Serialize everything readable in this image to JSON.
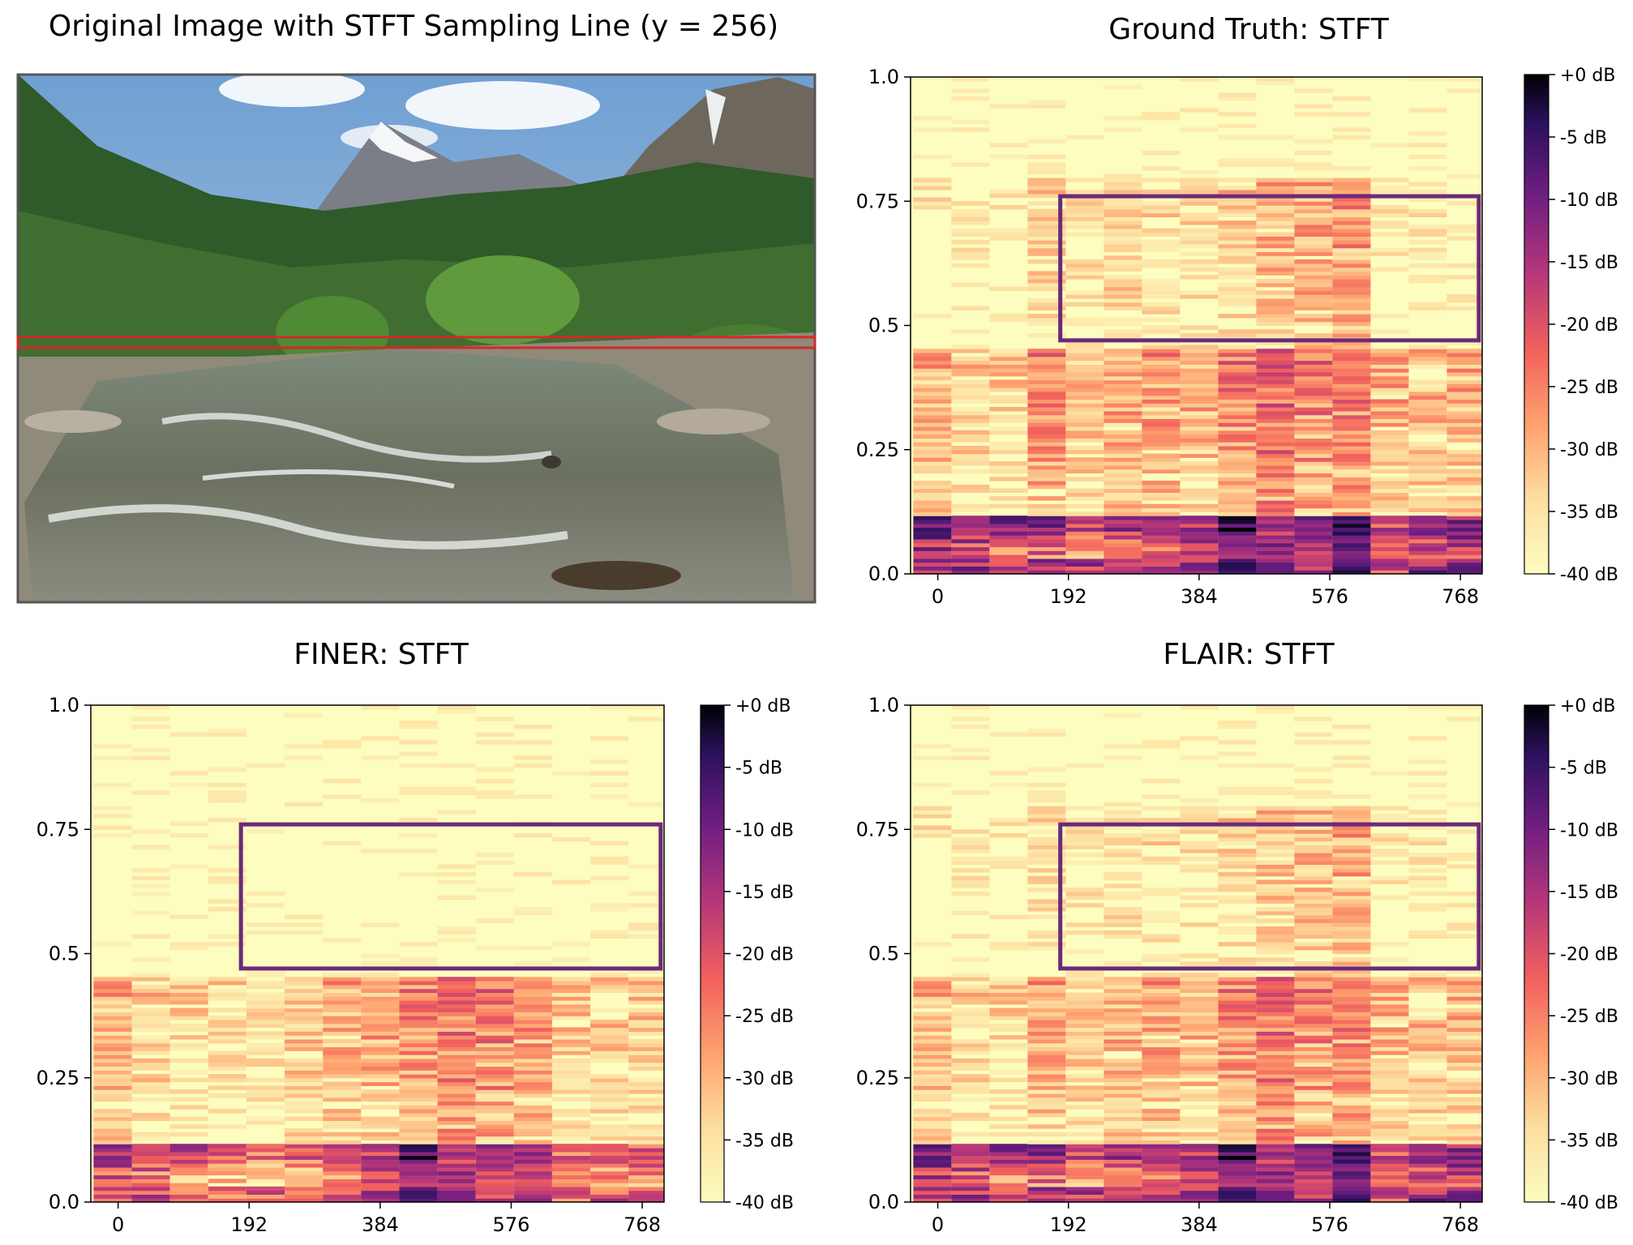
{
  "chart_data": [
    {
      "id": "original",
      "type": "image",
      "title": "Original Image with STFT Sampling Line (y = 256)",
      "image_name": "river-valley-landscape-photo",
      "sampling_line_color": "#d62728"
    },
    {
      "id": "gt",
      "type": "heatmap",
      "title": "Ground Truth: STFT",
      "xticks": [
        "0",
        "192",
        "384",
        "576",
        "768"
      ],
      "yticks": [
        "0.0",
        "0.25",
        "0.5",
        "0.75",
        "1.0"
      ],
      "xlim": [
        -40,
        800
      ],
      "ylim": [
        0.0,
        1.0
      ],
      "colormap": "magma",
      "colorbar": {
        "ticks": [
          "+0 dB",
          "-5 dB",
          "-10 dB",
          "-15 dB",
          "-20 dB",
          "-25 dB",
          "-30 dB",
          "-35 dB",
          "-40 dB"
        ],
        "range_db": [
          -40,
          0
        ]
      },
      "highlight_box": {
        "x": [
          180,
          800
        ],
        "y": [
          0.47,
          0.76
        ],
        "color": "#6b2a7a"
      },
      "profile": {
        "low_energy": [
          -16,
          -20,
          -22,
          -21,
          -24,
          -22,
          -23,
          -20,
          -12,
          -17,
          -19,
          -14,
          -24,
          -20,
          -19
        ],
        "mid_energy": [
          -33,
          -36,
          -37,
          -30,
          -34,
          -32,
          -31,
          -33,
          -29,
          -25,
          -28,
          -27,
          -33,
          -34,
          -33
        ],
        "high_band_energy": [
          -40,
          -40,
          -40,
          -36,
          -37,
          -35,
          -36,
          -36,
          -35,
          -32,
          -30,
          -29,
          -40,
          -40,
          -40
        ],
        "has_high_band": true
      }
    },
    {
      "id": "finer",
      "type": "heatmap",
      "title": "FINER: STFT",
      "xticks": [
        "0",
        "192",
        "384",
        "576",
        "768"
      ],
      "yticks": [
        "0.0",
        "0.25",
        "0.5",
        "0.75",
        "1.0"
      ],
      "xlim": [
        -40,
        800
      ],
      "ylim": [
        0.0,
        1.0
      ],
      "colormap": "magma",
      "colorbar": {
        "ticks": [
          "+0 dB",
          "-5 dB",
          "-10 dB",
          "-15 dB",
          "-20 dB",
          "-25 dB",
          "-30 dB",
          "-35 dB",
          "-40 dB"
        ],
        "range_db": [
          -40,
          0
        ]
      },
      "highlight_box": {
        "x": [
          180,
          800
        ],
        "y": [
          0.47,
          0.76
        ],
        "color": "#6b2a7a"
      },
      "profile": {
        "low_energy": [
          -22,
          -25,
          -28,
          -31,
          -30,
          -29,
          -27,
          -22,
          -14,
          -19,
          -22,
          -23,
          -28,
          -28,
          -28
        ],
        "mid_energy": [
          -33,
          -36,
          -38,
          -39,
          -38,
          -35,
          -33,
          -32,
          -30,
          -27,
          -28,
          -30,
          -36,
          -36,
          -36
        ],
        "high_band_energy": [
          -40,
          -40,
          -40,
          -40,
          -40,
          -40,
          -40,
          -40,
          -40,
          -40,
          -40,
          -40,
          -40,
          -40,
          -40
        ],
        "has_high_band": false
      }
    },
    {
      "id": "flair",
      "type": "heatmap",
      "title": "FLAIR: STFT",
      "xticks": [
        "0",
        "192",
        "384",
        "576",
        "768"
      ],
      "yticks": [
        "0.0",
        "0.25",
        "0.5",
        "0.75",
        "1.0"
      ],
      "xlim": [
        -40,
        800
      ],
      "ylim": [
        0.0,
        1.0
      ],
      "colormap": "magma",
      "colorbar": {
        "ticks": [
          "+0 dB",
          "-5 dB",
          "-10 dB",
          "-15 dB",
          "-20 dB",
          "-25 dB",
          "-30 dB",
          "-35 dB",
          "-40 dB"
        ],
        "range_db": [
          -40,
          0
        ]
      },
      "highlight_box": {
        "x": [
          180,
          800
        ],
        "y": [
          0.47,
          0.76
        ],
        "color": "#6b2a7a"
      },
      "profile": {
        "low_energy": [
          -18,
          -22,
          -24,
          -22,
          -25,
          -23,
          -24,
          -21,
          -13,
          -18,
          -20,
          -15,
          -25,
          -21,
          -20
        ],
        "mid_energy": [
          -34,
          -37,
          -38,
          -33,
          -35,
          -33,
          -32,
          -34,
          -30,
          -26,
          -29,
          -28,
          -34,
          -35,
          -34
        ],
        "high_band_energy": [
          -40,
          -40,
          -40,
          -38,
          -38,
          -37,
          -37,
          -37,
          -36,
          -34,
          -32,
          -31,
          -40,
          -40,
          -40
        ],
        "has_high_band": true
      }
    }
  ]
}
